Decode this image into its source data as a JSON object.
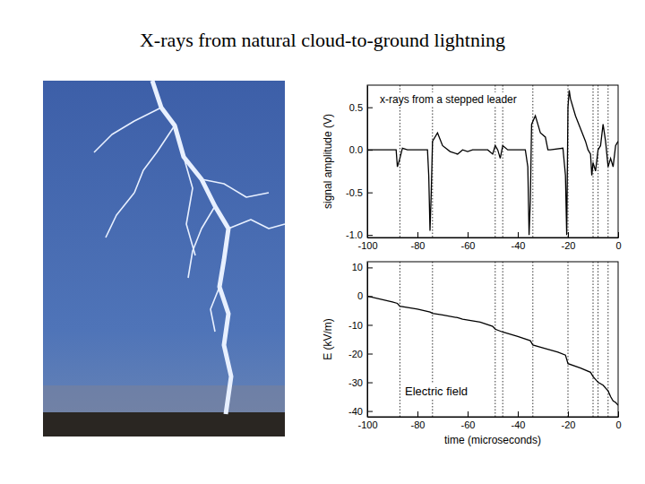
{
  "title": "X-rays from natural cloud-to-ground lightning",
  "chart_data": [
    {
      "type": "line",
      "annotation": "x-rays from a stepped leader",
      "y_label": "signal amplitude (V)",
      "xlim": [
        -100,
        0
      ],
      "xticks": [
        -100,
        -80,
        -60,
        -40,
        -20,
        0
      ],
      "ylim": [
        -1.03,
        0.76
      ],
      "yticks": [
        {
          "value": -1.0,
          "label": "-1.0"
        },
        -0.5,
        {
          "value": 0.0,
          "label": "0.0"
        },
        0.5
      ],
      "vlines": [
        -87,
        -74,
        -49,
        -46,
        -34,
        -20,
        -10,
        -8,
        -4
      ],
      "series": [
        {
          "color": "#000000",
          "x": [
            -100,
            -90,
            -88.5,
            -88,
            -87,
            -86,
            -84,
            -76,
            -75.5,
            -75,
            -74.5,
            -74,
            -72,
            -70,
            -67,
            -64,
            -62,
            -60,
            -58,
            -52,
            -50,
            -49,
            -48,
            -47,
            -46,
            -44,
            -37,
            -36,
            -35.5,
            -35,
            -34.5,
            -33,
            -31,
            -29,
            -28,
            -27,
            -22,
            -21,
            -20.5,
            -20,
            -19.5,
            -19,
            -17,
            -15,
            -13,
            -12,
            -11,
            -10.5,
            -10,
            -9,
            -8,
            -7,
            -6,
            -5,
            -4,
            -3,
            -2,
            -1,
            0
          ],
          "values": [
            0,
            0,
            0,
            -0.2,
            -0.1,
            0.02,
            0,
            0,
            -0.3,
            -0.95,
            -0.5,
            0.1,
            0.2,
            0.05,
            -0.02,
            -0.05,
            0,
            -0.02,
            0,
            0,
            -0.05,
            0.05,
            0,
            -0.1,
            0.05,
            0,
            0,
            -0.2,
            -1.0,
            -0.6,
            0.3,
            0.4,
            0.2,
            0.15,
            0,
            0,
            0.02,
            -0.3,
            -1.0,
            0.5,
            0.7,
            0.6,
            0.4,
            0.25,
            0.1,
            0,
            -0.05,
            -0.3,
            -0.15,
            -0.25,
            0,
            0.05,
            0.3,
            0.1,
            -0.2,
            -0.1,
            -0.2,
            0.05,
            0.1
          ]
        }
      ]
    },
    {
      "type": "line",
      "annotation": "Electric field",
      "y_label": "E (kV/m)",
      "x_label": "time (microseconds)",
      "xlim": [
        -100,
        0
      ],
      "xticks": [
        -100,
        -80,
        -60,
        -40,
        -20,
        0
      ],
      "ylim": [
        -42,
        12
      ],
      "yticks": [
        -40,
        -30,
        -20,
        -10,
        0,
        10
      ],
      "vlines": [
        -87,
        -74,
        -49,
        -46,
        -34,
        -20,
        -10,
        -8,
        -4
      ],
      "series": [
        {
          "color": "#000000",
          "x": [
            -100,
            -90,
            -88,
            -87,
            -80,
            -75,
            -74,
            -70,
            -64,
            -62,
            -55,
            -50,
            -49,
            -46,
            -40,
            -35,
            -34,
            -30,
            -24,
            -21,
            -20,
            -15,
            -11,
            -10,
            -8,
            -6,
            -4,
            -3,
            -2,
            -1,
            0
          ],
          "values": [
            0,
            -2,
            -2.5,
            -3.5,
            -4.5,
            -5.5,
            -6,
            -6.5,
            -7.5,
            -8,
            -9,
            -10.5,
            -11.5,
            -12.5,
            -14,
            -15.5,
            -17,
            -18,
            -19.5,
            -20.5,
            -23.5,
            -25,
            -26.5,
            -28,
            -30,
            -31,
            -33,
            -35,
            -36.5,
            -37,
            -38
          ]
        }
      ]
    }
  ]
}
